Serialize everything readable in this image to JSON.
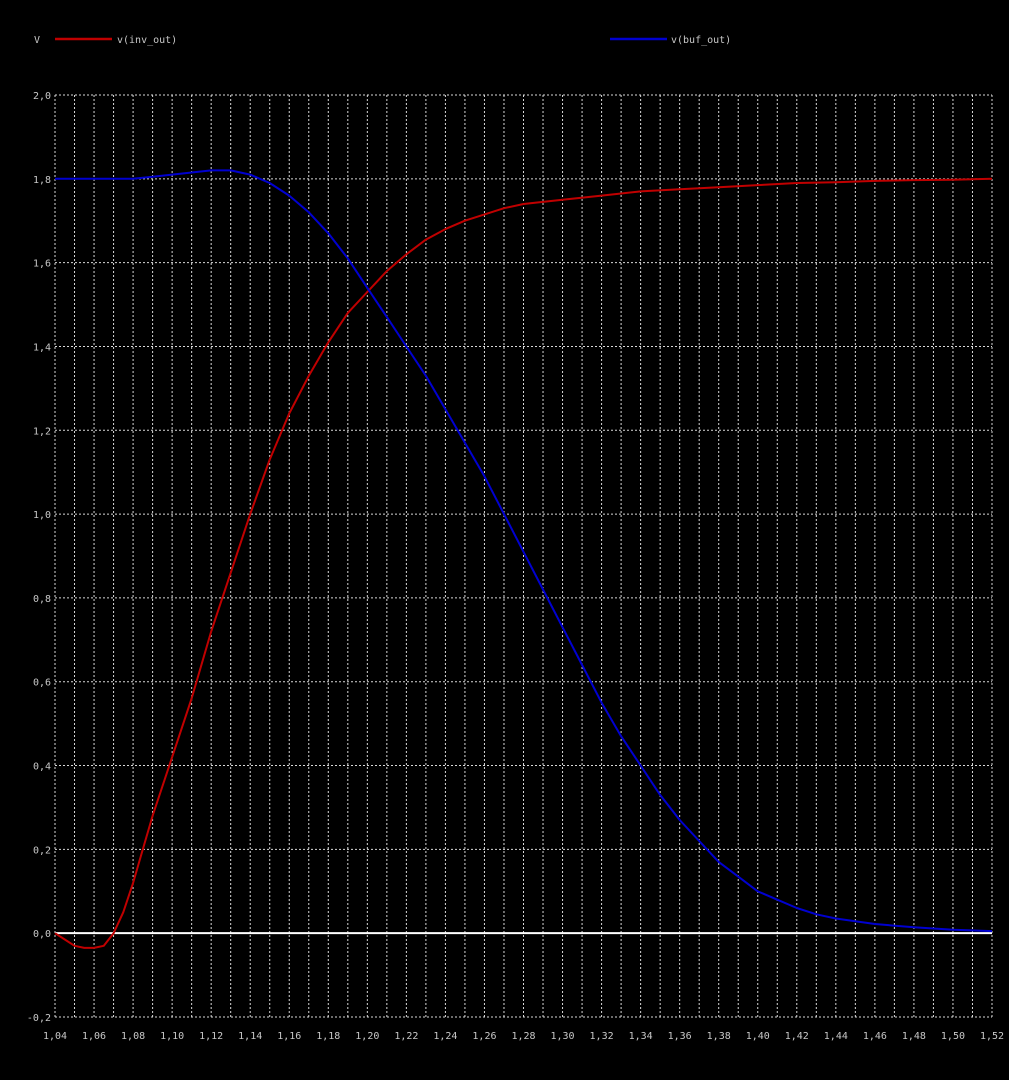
{
  "chart_data": {
    "type": "line",
    "ylabel": "V",
    "xlim": [
      1.04,
      1.52
    ],
    "ylim": [
      -0.2,
      2.0
    ],
    "x_ticks": [
      "1,04",
      "1,06",
      "1,08",
      "1,10",
      "1,12",
      "1,14",
      "1,16",
      "1,18",
      "1,20",
      "1,22",
      "1,24",
      "1,26",
      "1,28",
      "1,30",
      "1,32",
      "1,34",
      "1,36",
      "1,38",
      "1,40",
      "1,42",
      "1,44",
      "1,46",
      "1,48",
      "1,50",
      "1,52"
    ],
    "y_ticks": [
      "-0,2",
      "0,0",
      "0,2",
      "0,4",
      "0,6",
      "0,8",
      "1,0",
      "1,2",
      "1,4",
      "1,6",
      "1,8",
      "2,0"
    ],
    "grid": true,
    "legend_position": "top",
    "colors": {
      "background": "#000000",
      "zero_line": "#ffffff"
    },
    "series": [
      {
        "name": "v(inv_out)",
        "color": "#c00000",
        "x": [
          1.04,
          1.045,
          1.05,
          1.055,
          1.06,
          1.065,
          1.07,
          1.075,
          1.08,
          1.085,
          1.09,
          1.1,
          1.11,
          1.12,
          1.13,
          1.14,
          1.15,
          1.16,
          1.17,
          1.18,
          1.19,
          1.2,
          1.21,
          1.22,
          1.23,
          1.24,
          1.25,
          1.26,
          1.27,
          1.28,
          1.29,
          1.3,
          1.32,
          1.34,
          1.36,
          1.38,
          1.4,
          1.42,
          1.44,
          1.46,
          1.48,
          1.5,
          1.52
        ],
        "y": [
          0.0,
          -0.015,
          -0.03,
          -0.035,
          -0.035,
          -0.03,
          0.0,
          0.05,
          0.12,
          0.2,
          0.28,
          0.42,
          0.56,
          0.72,
          0.86,
          1.0,
          1.13,
          1.24,
          1.33,
          1.41,
          1.48,
          1.53,
          1.58,
          1.62,
          1.655,
          1.68,
          1.7,
          1.715,
          1.73,
          1.74,
          1.745,
          1.75,
          1.76,
          1.77,
          1.775,
          1.78,
          1.785,
          1.79,
          1.792,
          1.795,
          1.797,
          1.798,
          1.8
        ]
      },
      {
        "name": "v(buf_out)",
        "color": "#0000d0",
        "x": [
          1.04,
          1.06,
          1.08,
          1.09,
          1.1,
          1.11,
          1.12,
          1.13,
          1.14,
          1.15,
          1.16,
          1.17,
          1.18,
          1.19,
          1.2,
          1.21,
          1.22,
          1.23,
          1.24,
          1.25,
          1.26,
          1.27,
          1.28,
          1.29,
          1.3,
          1.31,
          1.32,
          1.33,
          1.34,
          1.35,
          1.36,
          1.37,
          1.38,
          1.39,
          1.4,
          1.41,
          1.42,
          1.43,
          1.44,
          1.46,
          1.48,
          1.5,
          1.52
        ],
        "y": [
          1.8,
          1.8,
          1.8,
          1.805,
          1.81,
          1.815,
          1.82,
          1.82,
          1.81,
          1.79,
          1.76,
          1.72,
          1.67,
          1.61,
          1.54,
          1.47,
          1.4,
          1.33,
          1.25,
          1.17,
          1.09,
          1.0,
          0.91,
          0.82,
          0.73,
          0.64,
          0.55,
          0.47,
          0.4,
          0.33,
          0.27,
          0.22,
          0.17,
          0.135,
          0.1,
          0.08,
          0.06,
          0.045,
          0.035,
          0.022,
          0.014,
          0.008,
          0.005
        ]
      }
    ]
  }
}
